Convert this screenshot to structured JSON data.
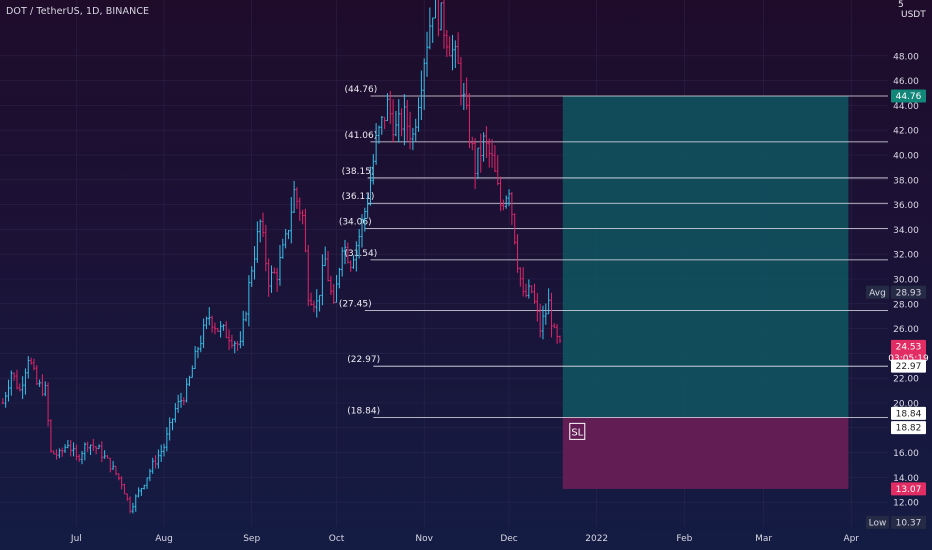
{
  "header": {
    "title": "DOT / TetherUS, 1D, BINANCE",
    "unit": "USDT",
    "corner_tick": "5"
  },
  "chart_data": {
    "type": "candlestick",
    "symbol": "DOT / TetherUS",
    "interval": "1D",
    "exchange": "BINANCE",
    "y_axis": {
      "ticks": [
        12,
        14,
        16,
        18,
        20,
        22,
        24,
        26,
        28,
        30,
        32,
        34,
        36,
        38,
        40,
        42,
        44,
        46,
        48
      ],
      "tick_labels": [
        "12.00",
        "14.00",
        "16.00",
        "18.00",
        "20.00",
        "22.00",
        "24.00",
        "26.00",
        "28.00",
        "30.00",
        "32.00",
        "34.00",
        "36.00",
        "38.00",
        "40.00",
        "42.00",
        "44.00",
        "46.00",
        "48.00"
      ],
      "range": [
        10.0,
        52.5
      ]
    },
    "x_axis": {
      "labels": [
        "Jul",
        "Aug",
        "Sep",
        "Oct",
        "Nov",
        "Dec",
        "2022",
        "Feb",
        "Mar",
        "Apr"
      ],
      "dates": [
        "2021-07-01",
        "2021-08-01",
        "2021-09-01",
        "2021-10-01",
        "2021-11-01",
        "2021-12-01",
        "2022-01-01",
        "2022-02-01",
        "2022-03-01",
        "2022-04-01"
      ],
      "range": [
        "2021-06-04",
        "2022-04-14"
      ]
    },
    "price_path": [
      [
        "2021-06-05",
        20.0
      ],
      [
        "2021-06-08",
        22.5
      ],
      [
        "2021-06-11",
        21.0
      ],
      [
        "2021-06-14",
        23.8
      ],
      [
        "2021-06-17",
        21.5
      ],
      [
        "2021-06-20",
        21.0
      ],
      [
        "2021-06-22",
        16.0
      ],
      [
        "2021-06-25",
        15.8
      ],
      [
        "2021-06-28",
        16.8
      ],
      [
        "2021-07-01",
        15.5
      ],
      [
        "2021-07-05",
        16.8
      ],
      [
        "2021-07-09",
        16.2
      ],
      [
        "2021-07-13",
        15.0
      ],
      [
        "2021-07-17",
        13.6
      ],
      [
        "2021-07-20",
        11.5
      ],
      [
        "2021-07-24",
        13.2
      ],
      [
        "2021-07-28",
        15.0
      ],
      [
        "2021-08-01",
        16.5
      ],
      [
        "2021-08-05",
        19.5
      ],
      [
        "2021-08-09",
        21.0
      ],
      [
        "2021-08-13",
        24.5
      ],
      [
        "2021-08-17",
        27.0
      ],
      [
        "2021-08-20",
        26.0
      ],
      [
        "2021-08-24",
        25.5
      ],
      [
        "2021-08-28",
        24.5
      ],
      [
        "2021-09-01",
        31.0
      ],
      [
        "2021-09-04",
        34.5
      ],
      [
        "2021-09-07",
        30.0
      ],
      [
        "2021-09-10",
        30.5
      ],
      [
        "2021-09-13",
        33.0
      ],
      [
        "2021-09-16",
        37.0
      ],
      [
        "2021-09-19",
        35.0
      ],
      [
        "2021-09-21",
        29.0
      ],
      [
        "2021-09-24",
        28.0
      ],
      [
        "2021-09-27",
        31.5
      ],
      [
        "2021-09-30",
        27.5
      ],
      [
        "2021-10-03",
        33.0
      ],
      [
        "2021-10-06",
        31.5
      ],
      [
        "2021-10-09",
        33.5
      ],
      [
        "2021-10-12",
        36.5
      ],
      [
        "2021-10-15",
        41.0
      ],
      [
        "2021-10-19",
        44.0
      ],
      [
        "2021-10-22",
        42.0
      ],
      [
        "2021-10-25",
        43.0
      ],
      [
        "2021-10-28",
        41.5
      ],
      [
        "2021-11-01",
        48.0
      ],
      [
        "2021-11-04",
        52.0
      ],
      [
        "2021-11-07",
        51.0
      ],
      [
        "2021-11-10",
        49.0
      ],
      [
        "2021-11-13",
        47.0
      ],
      [
        "2021-11-16",
        43.0
      ],
      [
        "2021-11-19",
        39.0
      ],
      [
        "2021-11-22",
        41.0
      ],
      [
        "2021-11-25",
        39.5
      ],
      [
        "2021-11-28",
        36.0
      ],
      [
        "2021-12-01",
        37.5
      ],
      [
        "2021-12-04",
        31.5
      ],
      [
        "2021-12-06",
        28.5
      ],
      [
        "2021-12-09",
        29.0
      ],
      [
        "2021-12-12",
        26.0
      ],
      [
        "2021-12-15",
        28.0
      ],
      [
        "2021-12-17",
        25.5
      ],
      [
        "2021-12-19",
        24.5
      ]
    ],
    "fib_levels": [
      {
        "label": "(44.76)",
        "value": 44.76
      },
      {
        "label": "(41.06)",
        "value": 41.06
      },
      {
        "label": "(38.15)",
        "value": 38.15
      },
      {
        "label": "(36.11)",
        "value": 36.11
      },
      {
        "label": "(34.06)",
        "value": 34.06
      },
      {
        "label": "(31.54)",
        "value": 31.54
      },
      {
        "label": "(27.45)",
        "value": 27.45
      },
      {
        "label": "(22.97)",
        "value": 22.97
      },
      {
        "label": "(18.84)",
        "value": 18.84
      }
    ],
    "position": {
      "entry": 18.84,
      "target": 44.76,
      "stop": 13.07,
      "start_date": "2021-12-20",
      "end_date": "2022-03-31",
      "stop_label": "SL"
    },
    "price_labels": [
      {
        "text": "44.76",
        "value": 44.76,
        "bg": "#13867a",
        "fg": "#ffffff"
      },
      {
        "text": "28.93",
        "value": 28.93,
        "bg": "#252a45",
        "fg": "#d8d8e4",
        "prefix": "Avg"
      },
      {
        "text": "24.53",
        "value": 24.53,
        "bg": "#e22c64",
        "fg": "#ffffff",
        "sub": "03:05:19"
      },
      {
        "text": "22.97",
        "value": 22.97,
        "bg": "#ffffff",
        "fg": "#222222"
      },
      {
        "text": "18.84",
        "value": 18.84,
        "bg": "#ffffff",
        "fg": "#222222"
      },
      {
        "text": "18.82",
        "value": 18.82,
        "bg": "#ffffff",
        "fg": "#222222"
      },
      {
        "text": "13.07",
        "value": 13.07,
        "bg": "#e22c64",
        "fg": "#ffffff"
      },
      {
        "text": "10.37",
        "value": 10.37,
        "bg": "#252a45",
        "fg": "#d8d8e4",
        "prefix": "Low"
      }
    ],
    "colors": {
      "up": "#36c0e8",
      "down": "#e0266a",
      "target_zone": "#0f5660",
      "stop_zone": "#6a1e58",
      "fib_line": "#e6e6ee",
      "grid": "#3a2f5a"
    }
  }
}
